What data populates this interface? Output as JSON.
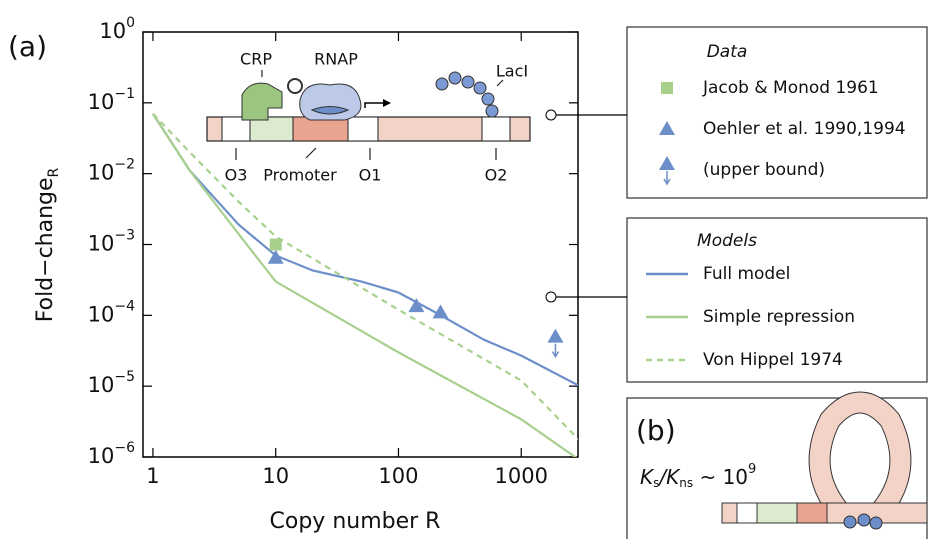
{
  "chart_data": {
    "type": "line",
    "panel_labels": [
      "(a)",
      "(b)"
    ],
    "xlabel": "Copy number R",
    "ylabel": {
      "text": "Fold−change",
      "subscript": "R"
    },
    "xscale": "log",
    "yscale": "log",
    "xlim": [
      0.83,
      2900
    ],
    "ylim": [
      1e-06,
      1
    ],
    "xticks": [
      1,
      10,
      100,
      1000
    ],
    "yticks": [
      {
        "value": 1,
        "label": "10",
        "exponent": "0"
      },
      {
        "value": 0.1,
        "label": "10",
        "exponent": "−1"
      },
      {
        "value": 0.01,
        "label": "10",
        "exponent": "−2"
      },
      {
        "value": 0.001,
        "label": "10",
        "exponent": "−3"
      },
      {
        "value": 0.0001,
        "label": "10",
        "exponent": "−4"
      },
      {
        "value": 1e-05,
        "label": "10",
        "exponent": "−5"
      },
      {
        "value": 1e-06,
        "label": "10",
        "exponent": "−6"
      }
    ],
    "points_title": "Data",
    "points": [
      {
        "name": "Jacob & Monod 1961",
        "color": "#a8d08d",
        "marker": "square",
        "x": [
          10
        ],
        "values": [
          0.001
        ]
      },
      {
        "name": "Oehler et al. 1990,1994",
        "color": "#6d8fc9",
        "marker": "triangle",
        "x": [
          10,
          140,
          220
        ],
        "values": [
          0.00065,
          0.000135,
          0.00011
        ]
      },
      {
        "name": "(upper bound)",
        "color": "#6d8fc9",
        "marker": "triangle",
        "upper_bound": true,
        "x": [
          1900
        ],
        "values": [
          5e-05
        ]
      }
    ],
    "series_title": "Models",
    "series": [
      {
        "name": "Full model",
        "color": "#6d8fc9",
        "dash": false,
        "x": [
          1,
          2,
          5,
          10,
          20,
          50,
          100,
          200,
          500,
          1000,
          3000
        ],
        "values": [
          0.07,
          0.011,
          0.0019,
          0.0007,
          0.00043,
          0.0003,
          0.00021,
          0.00011,
          4.5e-05,
          2.7e-05,
          1e-05
        ]
      },
      {
        "name": "Simple repression",
        "color": "#a8d08d",
        "dash": false,
        "x": [
          1,
          2,
          5,
          10,
          100,
          1000,
          3000
        ],
        "values": [
          0.07,
          0.011,
          0.0014,
          0.0003,
          3e-05,
          3.4e-06,
          9e-07
        ]
      },
      {
        "name": "Von Hippel 1974",
        "color": "#a8d08d",
        "dash": true,
        "x": [
          1,
          2,
          5,
          10,
          100,
          1000,
          3000
        ],
        "values": [
          0.07,
          0.02,
          0.004,
          0.0013,
          0.00012,
          1.2e-05,
          1.7e-06
        ]
      }
    ],
    "diagram_labels": [
      "CRP",
      "RNAP",
      "LacI",
      "O3",
      "Promoter",
      "O1",
      "O2"
    ],
    "panel_b_text": [
      "K",
      "s",
      "/K",
      "ns",
      " ~ 10",
      "9"
    ]
  }
}
